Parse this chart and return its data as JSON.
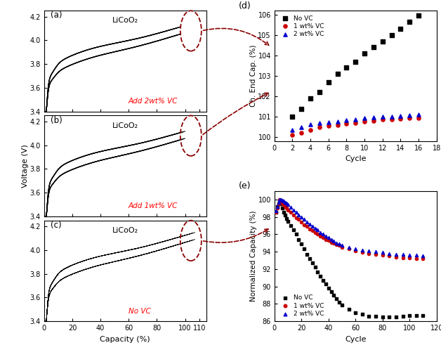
{
  "fig_width": 6.28,
  "fig_height": 5.08,
  "bg_color": "#ffffff",
  "panel_a_label": "LiCoO₂",
  "panel_b_label": "LiCoO₂",
  "panel_c_label": "LiCoO₂",
  "panel_a_annot": "Add 2wt% VC",
  "panel_b_annot": "Add 1wt% VC",
  "panel_c_annot": "No VC",
  "voltage_ylabel": "Voltage (V)",
  "capacity_xlabel": "Capacity (%)",
  "voltage_min": 3.4,
  "voltage_max": 4.2,
  "capacity_min": 0,
  "capacity_max": 115,
  "capacity_ticks": [
    0,
    20,
    40,
    60,
    80,
    100,
    110
  ],
  "capacity_ticklabels": [
    "0",
    "20",
    "40",
    "60",
    "80",
    "100",
    "110"
  ],
  "panel_d_xlabel": "Cycle",
  "panel_d_ylabel": "Ch. End Cap. (%)",
  "panel_d_xlim": [
    0,
    18
  ],
  "panel_d_ylim": [
    99.8,
    106.2
  ],
  "panel_d_yticks": [
    100,
    101,
    102,
    103,
    104,
    105,
    106
  ],
  "panel_d_xticks": [
    0,
    2,
    4,
    6,
    8,
    10,
    12,
    14,
    16,
    18
  ],
  "panel_e_xlabel": "Cycle",
  "panel_e_ylabel": "Normalized Capacity (%)",
  "panel_e_xlim": [
    0,
    120
  ],
  "panel_e_ylim": [
    86,
    101
  ],
  "panel_e_yticks": [
    86,
    88,
    90,
    92,
    94,
    96,
    98,
    100
  ],
  "panel_e_xticks": [
    0,
    20,
    40,
    60,
    80,
    100,
    120
  ],
  "color_no_vc": "#000000",
  "color_1wt": "#cc0000",
  "color_2wt": "#0000cc",
  "legend_d": [
    "No VC",
    "1 wt% VC",
    "2 wt% VC"
  ],
  "legend_e": [
    "No VC",
    "1 wt% VC",
    "2 wt% VC"
  ],
  "arrow_color": "#8b0000",
  "d_no_vc_x": [
    2,
    3,
    4,
    5,
    6,
    7,
    8,
    9,
    10,
    11,
    12,
    13,
    14,
    15,
    16
  ],
  "d_no_vc_y": [
    101.0,
    101.4,
    101.9,
    102.2,
    102.7,
    103.1,
    103.4,
    103.7,
    104.1,
    104.4,
    104.7,
    105.0,
    105.3,
    105.65,
    105.95
  ],
  "d_1wt_x": [
    2,
    3,
    4,
    5,
    6,
    7,
    8,
    9,
    10,
    11,
    12,
    13,
    14,
    15,
    16
  ],
  "d_1wt_y": [
    100.1,
    100.2,
    100.35,
    100.5,
    100.55,
    100.6,
    100.65,
    100.7,
    100.75,
    100.8,
    100.85,
    100.87,
    100.9,
    100.92,
    100.95
  ],
  "d_2wt_x": [
    2,
    3,
    4,
    5,
    6,
    7,
    8,
    9,
    10,
    11,
    12,
    13,
    14,
    15,
    16
  ],
  "d_2wt_y": [
    100.35,
    100.5,
    100.62,
    100.68,
    100.73,
    100.78,
    100.83,
    100.88,
    100.93,
    100.97,
    101.0,
    101.02,
    101.04,
    101.07,
    101.1
  ],
  "e_no_vc_x": [
    1,
    2,
    3,
    4,
    5,
    6,
    7,
    8,
    9,
    10,
    12,
    14,
    16,
    18,
    20,
    22,
    24,
    26,
    28,
    30,
    32,
    34,
    36,
    38,
    40,
    42,
    44,
    46,
    48,
    50,
    55,
    60,
    65,
    70,
    75,
    80,
    85,
    90,
    95,
    100,
    105,
    110
  ],
  "e_no_vc_y": [
    98.5,
    99.2,
    99.5,
    99.8,
    99.5,
    99.0,
    98.5,
    98.2,
    97.8,
    97.5,
    97.0,
    96.5,
    96.0,
    95.4,
    94.9,
    94.3,
    93.7,
    93.2,
    92.7,
    92.2,
    91.7,
    91.2,
    90.7,
    90.3,
    89.8,
    89.4,
    89.0,
    88.6,
    88.2,
    87.9,
    87.4,
    87.0,
    86.8,
    86.6,
    86.6,
    86.5,
    86.5,
    86.5,
    86.6,
    86.7,
    86.7,
    86.7
  ],
  "e_1wt_x": [
    1,
    2,
    3,
    4,
    5,
    6,
    7,
    8,
    9,
    10,
    12,
    14,
    16,
    18,
    20,
    22,
    24,
    26,
    28,
    30,
    32,
    34,
    36,
    38,
    40,
    42,
    44,
    46,
    48,
    50,
    55,
    60,
    65,
    70,
    75,
    80,
    85,
    90,
    95,
    100,
    105,
    110
  ],
  "e_1wt_y": [
    98.5,
    99.0,
    99.5,
    100.0,
    99.8,
    99.6,
    99.4,
    99.2,
    99.0,
    98.8,
    98.5,
    98.2,
    97.9,
    97.7,
    97.4,
    97.1,
    96.9,
    96.6,
    96.4,
    96.2,
    96.0,
    95.8,
    95.6,
    95.4,
    95.3,
    95.1,
    95.0,
    94.8,
    94.7,
    94.5,
    94.3,
    94.1,
    93.9,
    93.8,
    93.7,
    93.6,
    93.5,
    93.4,
    93.3,
    93.3,
    93.2,
    93.2
  ],
  "e_2wt_x": [
    1,
    2,
    3,
    4,
    5,
    6,
    7,
    8,
    9,
    10,
    12,
    14,
    16,
    18,
    20,
    22,
    24,
    26,
    28,
    30,
    32,
    34,
    36,
    38,
    40,
    42,
    44,
    46,
    48,
    50,
    55,
    60,
    65,
    70,
    75,
    80,
    85,
    90,
    95,
    100,
    105,
    110
  ],
  "e_2wt_y": [
    98.7,
    99.2,
    99.7,
    100.0,
    100.0,
    99.9,
    99.8,
    99.7,
    99.6,
    99.4,
    99.1,
    98.8,
    98.5,
    98.2,
    98.0,
    97.7,
    97.4,
    97.2,
    96.9,
    96.7,
    96.5,
    96.2,
    96.0,
    95.8,
    95.6,
    95.4,
    95.2,
    95.0,
    94.9,
    94.7,
    94.5,
    94.3,
    94.2,
    94.1,
    94.0,
    93.9,
    93.8,
    93.7,
    93.7,
    93.6,
    93.6,
    93.5
  ]
}
